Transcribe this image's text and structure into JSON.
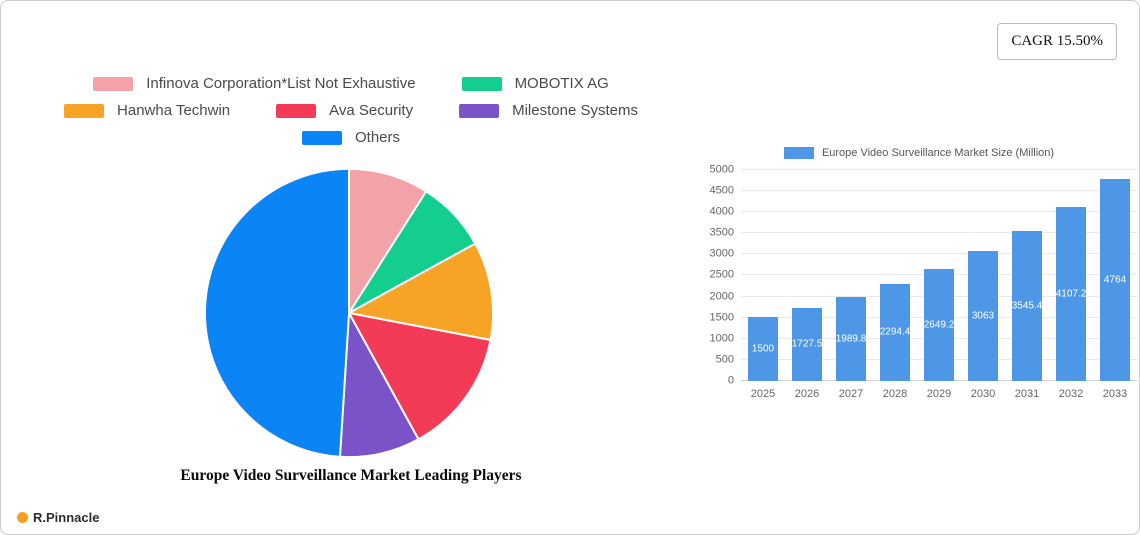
{
  "page": {
    "cagr_label": "CAGR 15.50%",
    "brand_name": "R.Pinnacle"
  },
  "chart_data": [
    {
      "type": "pie",
      "title": "Europe Video Surveillance Market Leading Players",
      "legend_position": "top",
      "legend_rows": [
        [
          0,
          1
        ],
        [
          2,
          3,
          4
        ],
        [
          5
        ]
      ],
      "slices": [
        {
          "label": "Infinova Corporation*List Not Exhaustive",
          "value": 9,
          "color": "#f3a2a7"
        },
        {
          "label": "MOBOTIX AG",
          "value": 8,
          "color": "#14ce8e"
        },
        {
          "label": "Hanwha Techwin",
          "value": 11,
          "color": "#f7a325"
        },
        {
          "label": "Ava Security",
          "value": 14,
          "color": "#f33b58"
        },
        {
          "label": "Milestone Systems",
          "value": 9,
          "color": "#7a53c9"
        },
        {
          "label": "Others",
          "value": 49,
          "color": "#0b84f5"
        }
      ]
    },
    {
      "type": "bar",
      "categories": [
        "2025",
        "2026",
        "2027",
        "2028",
        "2029",
        "2030",
        "2031",
        "2032",
        "2033"
      ],
      "series": [
        {
          "name": "Europe Video Surveillance Market Size (Million)",
          "values": [
            1500,
            1727.5,
            1989.8,
            2294.4,
            2649.2,
            3063,
            3545.4,
            4107.2,
            4764
          ]
        }
      ],
      "bar_labels": [
        "1500",
        "1727.5",
        "1989.8",
        "2294.4",
        "2649.2",
        "3063",
        "3545.4",
        "4107.2",
        "4764"
      ],
      "color": "#4e97e6",
      "xlabel": "",
      "ylabel": "",
      "ylim": [
        0,
        5000
      ],
      "ytick_step": 500,
      "grid": true,
      "legend_position": "top"
    }
  ]
}
